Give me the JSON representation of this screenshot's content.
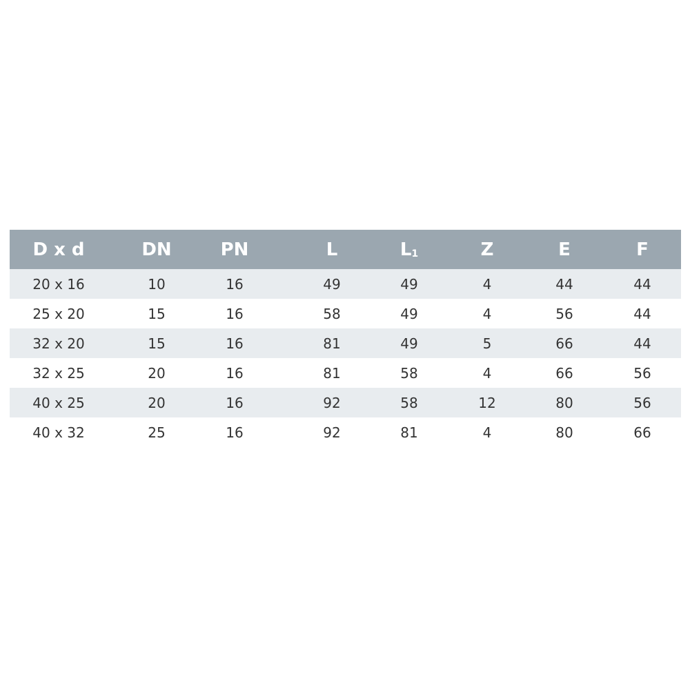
{
  "table": {
    "header": [
      "D x d",
      "DN",
      "PN",
      "L",
      {
        "text": "L",
        "sub": "1"
      },
      "Z",
      "E",
      "F"
    ],
    "rows": [
      [
        "20 x 16",
        10,
        16,
        49,
        49,
        4,
        44,
        44
      ],
      [
        "25 x 20",
        15,
        16,
        58,
        49,
        4,
        56,
        44
      ],
      [
        "32 x 20",
        15,
        16,
        81,
        49,
        5,
        66,
        44
      ],
      [
        "32 x 25",
        20,
        16,
        81,
        58,
        4,
        66,
        56
      ],
      [
        "40 x 25",
        20,
        16,
        92,
        58,
        12,
        80,
        56
      ],
      [
        "40 x 32",
        25,
        16,
        92,
        81,
        4,
        80,
        66
      ]
    ]
  }
}
